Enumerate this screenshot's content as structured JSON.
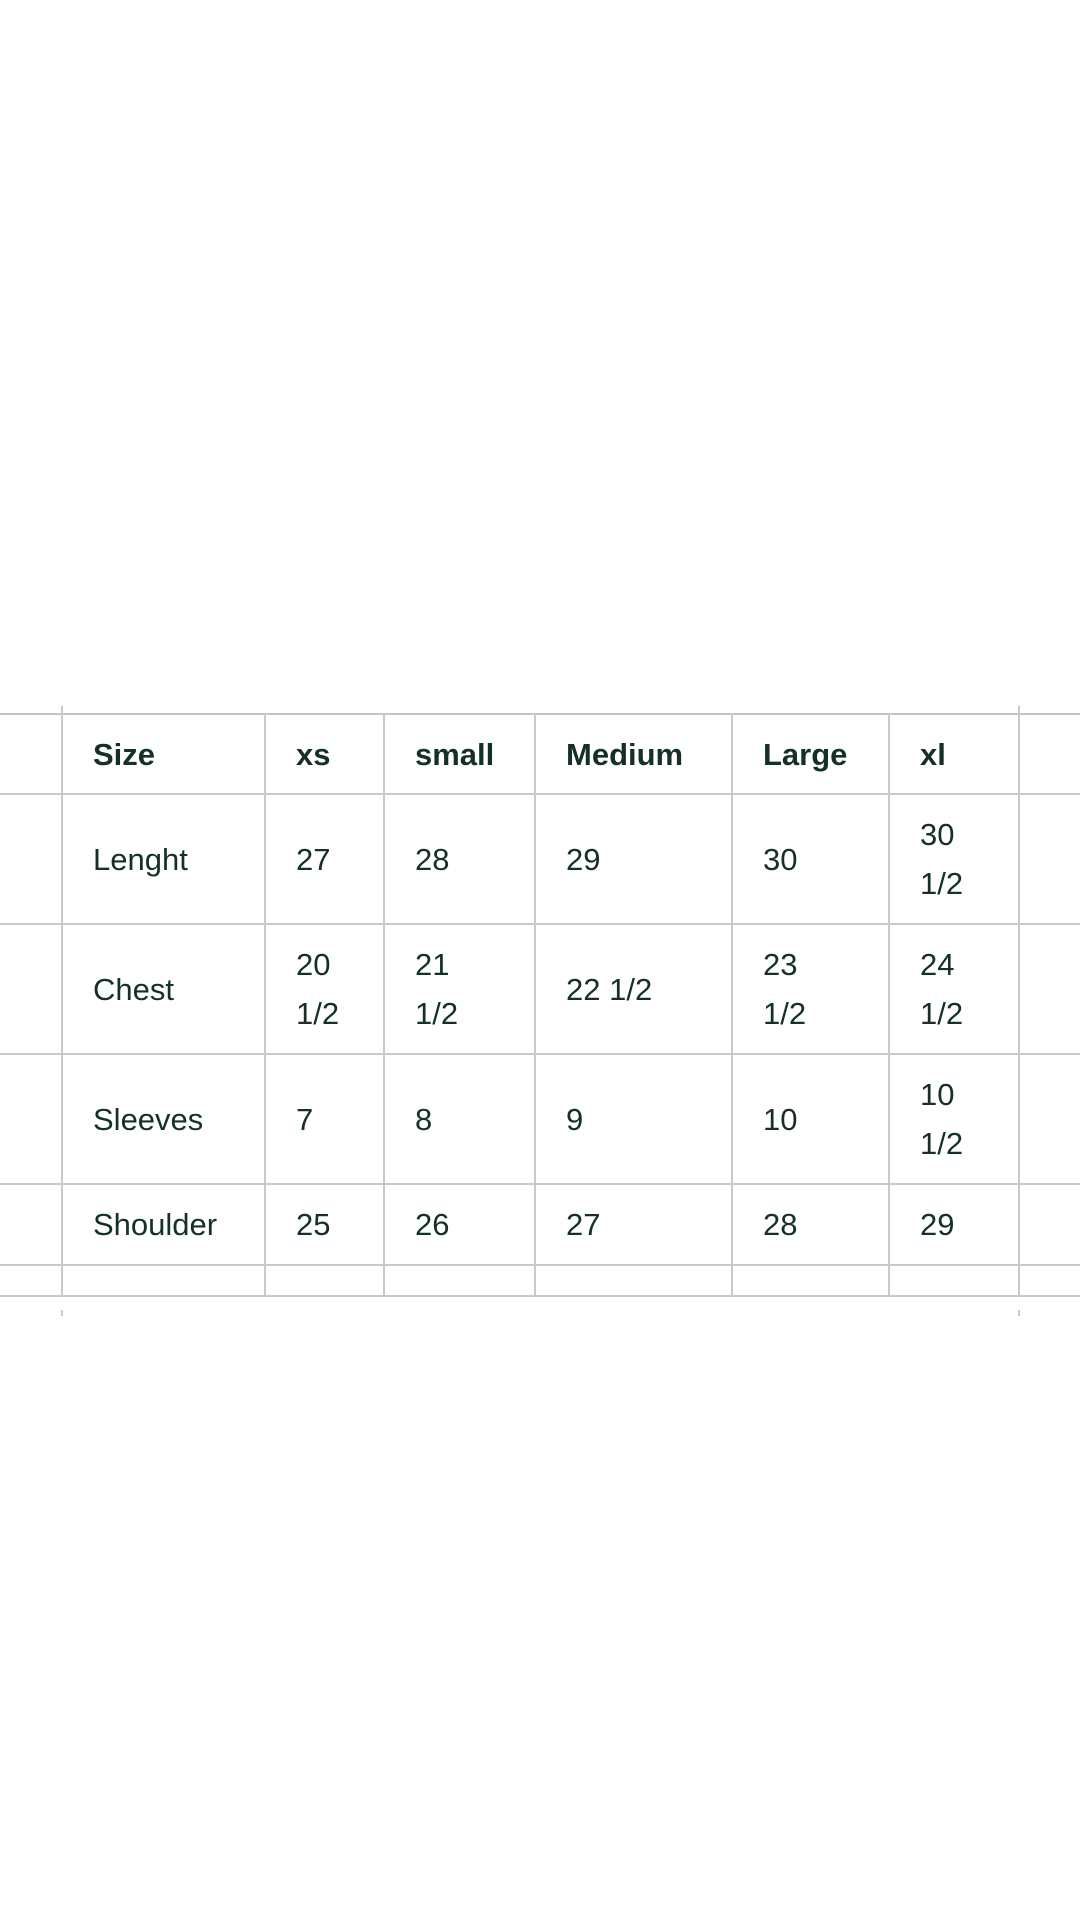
{
  "size_chart": {
    "header": [
      "Size",
      "xs",
      "small",
      "Medium",
      "Large",
      "xl"
    ],
    "rows": [
      [
        "Lenght",
        "27",
        "28",
        "29",
        "30",
        "30 1/2"
      ],
      [
        "Chest",
        "20 1/2",
        "21 1/2",
        "22 1/2",
        "23 1/2",
        "24 1/2"
      ],
      [
        "Sleeves",
        "7",
        "8",
        "9",
        "10",
        "10 1/2"
      ],
      [
        "Shoulder",
        "25",
        "26",
        "27",
        "28",
        "29"
      ]
    ]
  },
  "colors": {
    "text": "#15302a",
    "grid": "#c9c9c9"
  }
}
